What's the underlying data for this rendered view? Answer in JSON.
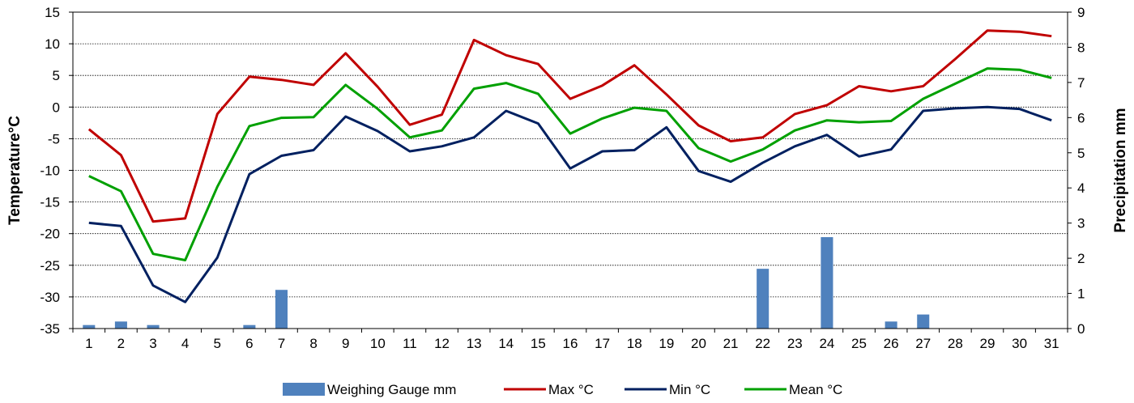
{
  "chart_data": {
    "type": "bar+line",
    "categories": [
      "1",
      "2",
      "3",
      "4",
      "5",
      "6",
      "7",
      "8",
      "9",
      "10",
      "11",
      "12",
      "13",
      "14",
      "15",
      "16",
      "17",
      "18",
      "19",
      "20",
      "21",
      "22",
      "23",
      "24",
      "25",
      "26",
      "27",
      "28",
      "29",
      "30",
      "31"
    ],
    "ylabel_left": "Temperature°C",
    "ylabel_right": "Precipitation mm",
    "ylim_left": [
      -35,
      15
    ],
    "yticks_left": [
      "15",
      "10",
      "5",
      "0",
      "-5",
      "-10",
      "-15",
      "-20",
      "-25",
      "-30",
      "-35"
    ],
    "ylim_right": [
      0,
      9
    ],
    "yticks_right": [
      "9",
      "8",
      "7",
      "6",
      "5",
      "4",
      "3",
      "2",
      "1",
      "0"
    ],
    "grid": "horizontal dotted",
    "legend_position": "bottom",
    "bar_series": {
      "name": "Weighing Gauge mm",
      "axis": "right",
      "color": "#4F81BD",
      "values": [
        0.1,
        0.2,
        0.1,
        0,
        0,
        0.1,
        1.1,
        0,
        0,
        0,
        0,
        0,
        0,
        0,
        0,
        0,
        0,
        0,
        0,
        0,
        0,
        1.7,
        0,
        2.6,
        0,
        0.2,
        0.4,
        0,
        0,
        0,
        0
      ]
    },
    "line_series": [
      {
        "name": "Max °C",
        "color": "#C00000",
        "values": [
          -3.5,
          -7.6,
          -18.1,
          -17.6,
          -1.1,
          4.8,
          4.3,
          3.5,
          8.5,
          3.2,
          -2.8,
          -1.2,
          10.6,
          8.2,
          6.8,
          1.3,
          3.4,
          6.6,
          2.0,
          -2.9,
          -5.4,
          -4.8,
          -1.1,
          0.3,
          3.3,
          2.5,
          3.3,
          7.6,
          12.1,
          11.9,
          11.2
        ]
      },
      {
        "name": "Min °C",
        "color": "#002060",
        "values": [
          -18.3,
          -18.8,
          -28.2,
          -30.8,
          -23.8,
          -10.6,
          -7.7,
          -6.8,
          -1.5,
          -3.8,
          -7.0,
          -6.2,
          -4.8,
          -0.6,
          -2.6,
          -9.7,
          -7.0,
          -6.8,
          -3.2,
          -10.1,
          -11.8,
          -8.8,
          -6.2,
          -4.4,
          -7.8,
          -6.7,
          -0.6,
          -0.2,
          0.0,
          -0.3,
          -2.1
        ]
      },
      {
        "name": "Mean °C",
        "color": "#00A000",
        "values": [
          -10.9,
          -13.3,
          -23.2,
          -24.2,
          -12.6,
          -3.0,
          -1.7,
          -1.6,
          3.5,
          -0.3,
          -4.8,
          -3.7,
          2.9,
          3.8,
          2.1,
          -4.2,
          -1.8,
          -0.1,
          -0.6,
          -6.5,
          -8.6,
          -6.7,
          -3.7,
          -2.1,
          -2.4,
          -2.2,
          1.3,
          3.7,
          6.1,
          5.9,
          4.6
        ]
      }
    ]
  }
}
